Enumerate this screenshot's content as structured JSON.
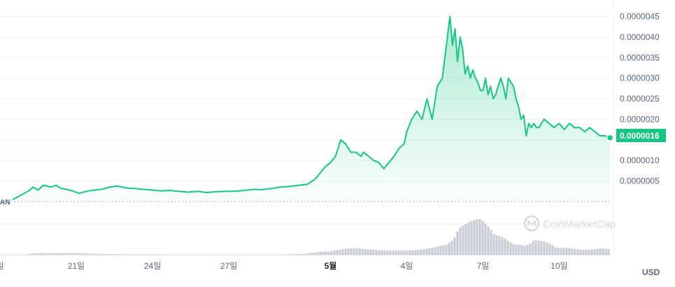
{
  "chart_data": {
    "type": "area",
    "currency": "USD",
    "colors": {
      "line": "#16c784",
      "fill_top": "#16c784",
      "volume": "#c9cdd6",
      "grid": "#eff2f5"
    },
    "ylim": [
      0,
      4.9e-06
    ],
    "y_ticks": [
      "0.0000045",
      "0.0000040",
      "0.0000035",
      "0.0000030",
      "0.0000025",
      "0.0000020",
      "0.0000010",
      "0.0000005"
    ],
    "y_tick_values": [
      4.5e-06,
      4e-06,
      3.5e-06,
      3e-06,
      2.5e-06,
      2e-06,
      1e-06,
      5e-07
    ],
    "current_price_label": "0.0000016",
    "current_price": 1.55e-06,
    "baseline_label": "AN",
    "x_labels": [
      {
        "label": "일",
        "day": 0,
        "bold": false
      },
      {
        "label": "21일",
        "day": 3,
        "bold": false
      },
      {
        "label": "24일",
        "day": 6,
        "bold": false
      },
      {
        "label": "27일",
        "day": 9,
        "bold": false
      },
      {
        "label": "5월",
        "day": 13,
        "bold": true
      },
      {
        "label": "4일",
        "day": 16,
        "bold": false
      },
      {
        "label": "7일",
        "day": 19,
        "bold": false
      },
      {
        "label": "10일",
        "day": 22,
        "bold": false
      }
    ],
    "x_range_days": [
      0,
      24.05
    ],
    "series": [
      {
        "x": [
          0.5,
          0.8,
          1.1,
          1.3,
          1.5,
          1.7,
          2.0,
          2.2,
          2.4,
          2.6,
          2.9,
          3.1,
          3.4,
          3.7,
          4.0,
          4.3,
          4.6,
          5.0,
          5.3,
          5.6,
          6.0,
          6.3,
          6.7,
          7.0,
          7.4,
          7.8,
          8.1,
          8.5,
          8.9,
          9.2,
          9.6,
          10.0,
          10.3,
          10.7,
          11.0,
          11.4,
          11.8,
          12.1,
          12.4,
          12.6,
          12.8,
          13.0,
          13.2,
          13.4,
          13.6,
          13.8,
          14.0,
          14.2,
          14.3,
          14.5,
          14.7,
          14.9,
          15.1,
          15.3,
          15.5,
          15.7,
          15.9,
          16.0,
          16.2,
          16.4,
          16.6,
          16.8,
          17.0,
          17.2,
          17.4,
          17.5,
          17.7,
          17.8,
          17.9,
          18.0,
          18.1,
          18.2,
          18.3,
          18.4,
          18.5,
          18.6,
          18.7,
          18.8,
          18.9,
          19.0,
          19.1,
          19.2,
          19.3,
          19.4,
          19.5,
          19.6,
          19.7,
          19.8,
          19.9,
          20.0,
          20.1,
          20.2,
          20.3,
          20.4,
          20.5,
          20.6,
          20.7,
          20.8,
          20.9,
          21.0,
          21.1,
          21.2,
          21.4,
          21.6,
          21.8,
          22.0,
          22.2,
          22.4,
          22.6,
          22.8,
          23.0,
          23.2,
          23.4,
          23.6,
          23.8,
          24.0
        ],
        "y": [
          5e-08,
          1.5e-07,
          2.5e-07,
          3.5e-07,
          2.8e-07,
          4e-07,
          3.5e-07,
          4e-07,
          3.2e-07,
          3e-07,
          2.5e-07,
          2e-07,
          2.5e-07,
          2.8e-07,
          3e-07,
          3.5e-07,
          3.8e-07,
          3.3e-07,
          3.2e-07,
          3e-07,
          2.8e-07,
          2.6e-07,
          2.7e-07,
          2.5e-07,
          2.3e-07,
          2.5e-07,
          2.2e-07,
          2.4e-07,
          2.5e-07,
          2.5e-07,
          2.7e-07,
          3e-07,
          2.9e-07,
          3.2e-07,
          3.5e-07,
          3.7e-07,
          4e-07,
          4.2e-07,
          5.5e-07,
          7e-07,
          8.5e-07,
          9.5e-07,
          1.1e-06,
          1.5e-06,
          1.4e-06,
          1.2e-06,
          1.2e-06,
          1.1e-06,
          1.2e-06,
          1.1e-06,
          1e-06,
          9.5e-07,
          8e-07,
          9.5e-07,
          1.1e-06,
          1.3e-06,
          1.4e-06,
          1.7e-06,
          2e-06,
          2.2e-06,
          2e-06,
          2.5e-06,
          2e-06,
          2.8e-06,
          3e-06,
          3.5e-06,
          4.5e-06,
          3.8e-06,
          4.2e-06,
          3.4e-06,
          4e-06,
          3.7e-06,
          3.1e-06,
          3.3e-06,
          3e-06,
          3.2e-06,
          3e-06,
          2.9e-06,
          2.7e-06,
          2.7e-06,
          3e-06,
          2.6e-06,
          2.8e-06,
          2.5e-06,
          2.6e-06,
          2.8e-06,
          3e-06,
          2.8e-06,
          2.5e-06,
          3e-06,
          2.9e-06,
          2.8e-06,
          2.5e-06,
          2.3e-06,
          2e-06,
          2.1e-06,
          1.6e-06,
          1.9e-06,
          1.8e-06,
          1.9e-06,
          1.8e-06,
          1.8e-06,
          2e-06,
          1.9e-06,
          1.8e-06,
          1.9e-06,
          1.75e-06,
          1.9e-06,
          1.8e-06,
          1.8e-06,
          1.7e-06,
          1.8e-06,
          1.7e-06,
          1.6e-06,
          1.6e-06,
          1.55e-06
        ]
      }
    ],
    "volume": {
      "x": [
        1.0,
        1.5,
        2.0,
        2.5,
        3.0,
        3.5,
        4.0,
        5.0,
        6.0,
        7.0,
        8.0,
        9.0,
        10.0,
        11.0,
        12.0,
        12.5,
        13.0,
        13.3,
        13.6,
        14.0,
        14.3,
        14.6,
        15.0,
        15.5,
        16.0,
        16.5,
        17.0,
        17.5,
        17.8,
        18.0,
        18.2,
        18.4,
        18.6,
        18.8,
        19.0,
        19.2,
        19.4,
        19.6,
        19.8,
        20.0,
        20.2,
        20.4,
        20.6,
        20.8,
        21.0,
        21.2,
        21.4,
        21.6,
        21.8,
        22.0,
        22.2,
        22.4,
        22.6,
        22.8,
        23.0,
        23.2,
        23.4,
        23.6,
        23.8,
        24.0
      ],
      "v": [
        0.02,
        0.05,
        0.04,
        0.05,
        0.05,
        0.03,
        0.02,
        0.01,
        0.01,
        0.0,
        0.0,
        0.0,
        0.0,
        0.0,
        0.03,
        0.08,
        0.1,
        0.14,
        0.17,
        0.18,
        0.16,
        0.15,
        0.12,
        0.12,
        0.12,
        0.14,
        0.2,
        0.28,
        0.42,
        0.72,
        0.82,
        0.9,
        0.95,
        1.0,
        0.9,
        0.75,
        0.55,
        0.52,
        0.45,
        0.35,
        0.28,
        0.28,
        0.25,
        0.3,
        0.42,
        0.38,
        0.36,
        0.3,
        0.2,
        0.18,
        0.2,
        0.18,
        0.16,
        0.14,
        0.14,
        0.15,
        0.16,
        0.18,
        0.16,
        0.17
      ]
    }
  },
  "brand": {
    "name": "CoinMarketCap"
  }
}
